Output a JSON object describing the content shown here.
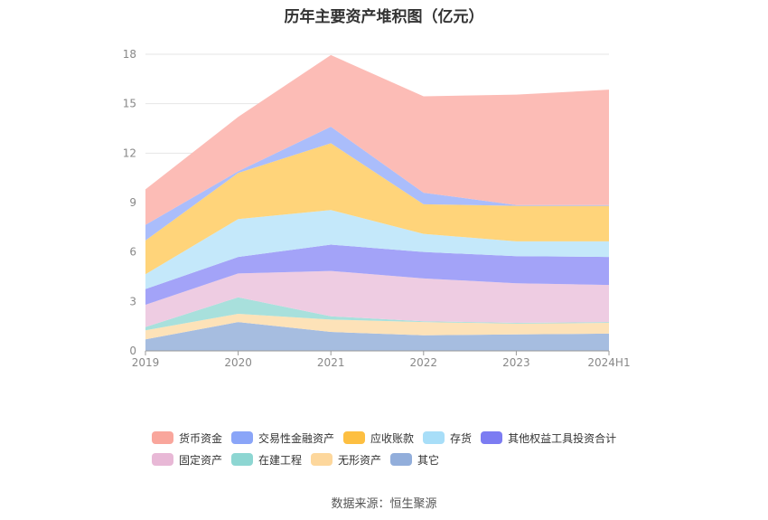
{
  "chart_data": {
    "type": "area",
    "stacked": true,
    "title": "历年主要资产堆积图（亿元）",
    "categories": [
      "2019",
      "2020",
      "2021",
      "2022",
      "2023",
      "2024H1"
    ],
    "ylim": [
      0,
      18
    ],
    "yticks": [
      0,
      3,
      6,
      9,
      12,
      15,
      18
    ],
    "grid": true,
    "legend_position": "bottom",
    "series": [
      {
        "name": "其它",
        "color": "#a6bde0",
        "values": [
          0.7,
          1.75,
          1.15,
          0.95,
          1.0,
          1.05
        ]
      },
      {
        "name": "无形资产",
        "color": "#fde2b8",
        "values": [
          0.55,
          0.5,
          0.75,
          0.8,
          0.65,
          0.65
        ]
      },
      {
        "name": "在建工程",
        "color": "#a8e0dc",
        "values": [
          0.2,
          1.0,
          0.2,
          0.05,
          0.05,
          0.05
        ]
      },
      {
        "name": "固定资产",
        "color": "#eecce2",
        "values": [
          1.35,
          1.45,
          2.75,
          2.6,
          2.4,
          2.25
        ]
      },
      {
        "name": "其他权益工具投资合计",
        "color": "#a3a3f8",
        "values": [
          0.95,
          1.0,
          1.6,
          1.6,
          1.65,
          1.7
        ]
      },
      {
        "name": "存货",
        "color": "#c4e8fa",
        "values": [
          0.9,
          2.3,
          2.1,
          1.1,
          0.9,
          0.95
        ]
      },
      {
        "name": "应收账款",
        "color": "#ffd47a",
        "values": [
          2.05,
          2.8,
          4.05,
          1.8,
          2.15,
          2.15
        ]
      },
      {
        "name": "交易性金融资产",
        "color": "#aabdfb",
        "values": [
          0.95,
          0.1,
          1.0,
          0.7,
          0.05,
          0.05
        ]
      },
      {
        "name": "货币资金",
        "color": "#fcbcb6",
        "values": [
          2.15,
          3.3,
          4.35,
          5.85,
          6.7,
          7.0
        ]
      }
    ],
    "legend": [
      {
        "name": "货币资金",
        "color": "#f9a69c"
      },
      {
        "name": "交易性金融资产",
        "color": "#8aa5f8"
      },
      {
        "name": "应收账款",
        "color": "#fdbf41"
      },
      {
        "name": "存货",
        "color": "#a8def8"
      },
      {
        "name": "其他权益工具投资合计",
        "color": "#7c7cf2"
      },
      {
        "name": "固定资产",
        "color": "#e8b8d6"
      },
      {
        "name": "在建工程",
        "color": "#8dd6d2"
      },
      {
        "name": "无形资产",
        "color": "#fdd79c"
      },
      {
        "name": "其它",
        "color": "#92aedb"
      }
    ]
  },
  "footer": {
    "source": "数据来源：恒生聚源"
  }
}
